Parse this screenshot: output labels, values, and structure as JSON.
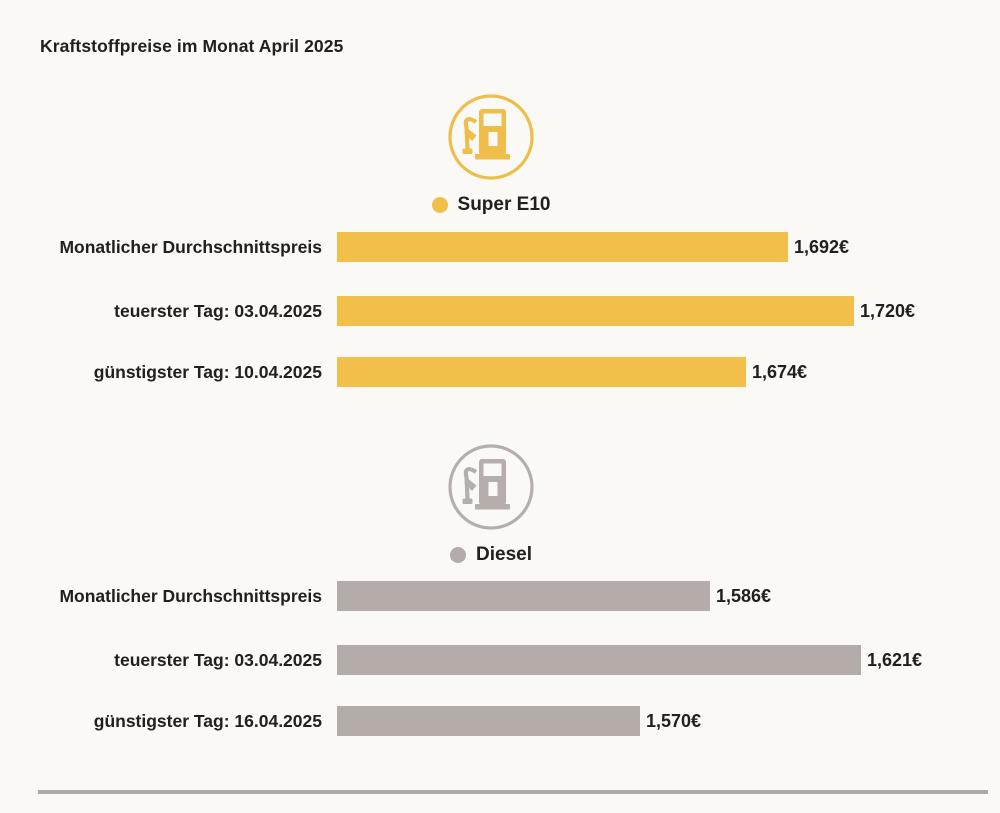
{
  "title": "Kraftstoffpreise im Monat April 2025",
  "chart_data": {
    "type": "bar",
    "orientation": "horizontal",
    "title": "Kraftstoffpreise im Monat April 2025",
    "value_axis_baseline": 1.5,
    "grid": false,
    "groups": [
      {
        "name": "Super E10",
        "color": "#f2c04a",
        "icon": "fuel-pump-icon",
        "rows": [
          {
            "label": "Monatlicher Durchschnittspreis",
            "value": 1.692,
            "display": "1,692€"
          },
          {
            "label": "teuerster Tag: 03.04.2025",
            "value": 1.72,
            "display": "1,720€"
          },
          {
            "label": "günstigster Tag: 10.04.2025",
            "value": 1.674,
            "display": "1,674€"
          }
        ]
      },
      {
        "name": "Diesel",
        "color": "#b3aca8",
        "icon": "fuel-pump-icon",
        "rows": [
          {
            "label": "Monatlicher Durchschnittspreis",
            "value": 1.586,
            "display": "1,586€"
          },
          {
            "label": "teuerster Tag: 03.04.2025",
            "value": 1.621,
            "display": "1,621€"
          },
          {
            "label": "günstigster Tag: 16.04.2025",
            "value": 1.57,
            "display": "1,570€"
          }
        ]
      }
    ]
  }
}
